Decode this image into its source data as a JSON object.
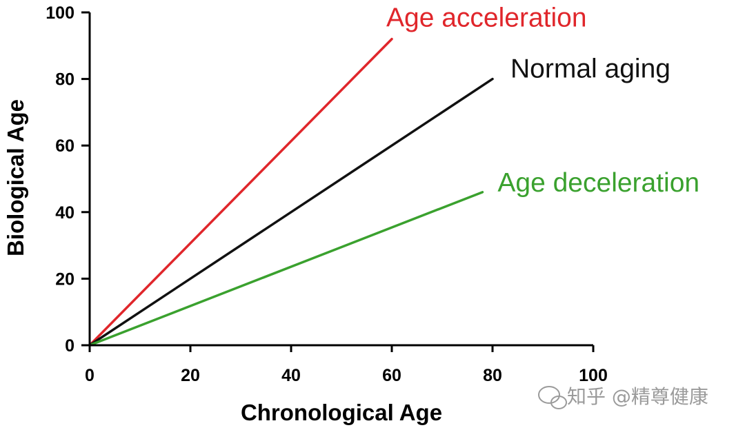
{
  "chart_data": {
    "type": "line",
    "title": "",
    "xlabel": "Chronological Age",
    "ylabel": "Biological Age",
    "xlim": [
      0,
      100
    ],
    "ylim": [
      0,
      100
    ],
    "x_ticks": [
      "0",
      "20",
      "40",
      "60",
      "80",
      "100"
    ],
    "y_ticks": [
      "0",
      "20",
      "40",
      "60",
      "80",
      "100"
    ],
    "grid": false,
    "legend": "labels at line ends",
    "series": [
      {
        "name": "Age acceleration",
        "color": "#e0262b",
        "x": [
          0,
          60
        ],
        "y": [
          0,
          92
        ]
      },
      {
        "name": "Normal aging",
        "color": "#111111",
        "x": [
          0,
          80
        ],
        "y": [
          0,
          80
        ]
      },
      {
        "name": "Age deceleration",
        "color": "#3aa12e",
        "x": [
          0,
          78
        ],
        "y": [
          0,
          46
        ]
      }
    ]
  },
  "watermark": {
    "text": "知乎 @精尊健康",
    "icon": "wechat-bubble-icon"
  }
}
